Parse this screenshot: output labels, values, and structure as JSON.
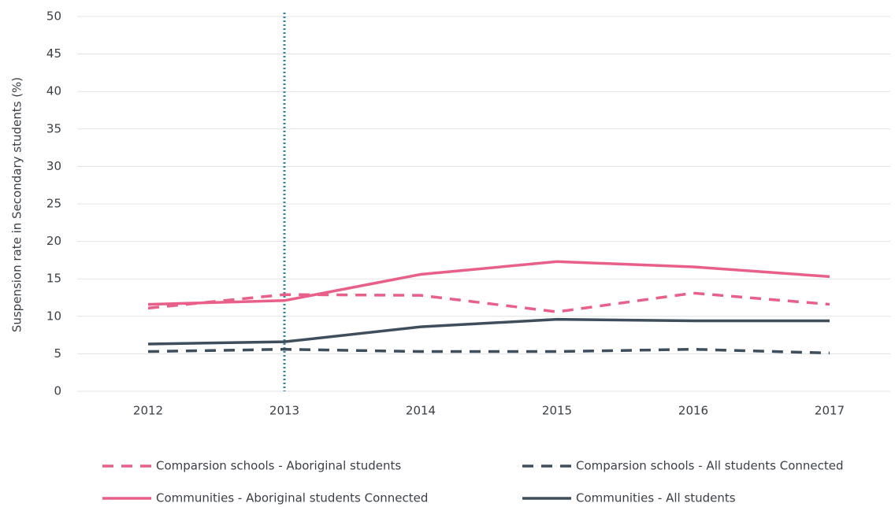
{
  "chart_data": {
    "type": "line",
    "y_label": "Suspension rate in Secondary students (%)",
    "x": [
      "2012",
      "2013",
      "2014",
      "2015",
      "2016",
      "2017"
    ],
    "series": [
      {
        "name": "Comparsion schools - Aboriginal students",
        "color": "#e8608a",
        "dash": true,
        "values": [
          11.1,
          12.9,
          12.8,
          10.6,
          13.1,
          11.6
        ]
      },
      {
        "name": "Comparsion schools - All students Connected",
        "color": "#3f4e5c",
        "dash": true,
        "values": [
          5.3,
          5.6,
          5.3,
          5.3,
          5.6,
          5.1
        ]
      },
      {
        "name": "Communities - Aboriginal students Connected",
        "color": "#e8608a",
        "dash": false,
        "values": [
          11.6,
          12.1,
          15.6,
          17.3,
          16.6,
          15.3
        ]
      },
      {
        "name": "Communities - All students",
        "color": "#3f4e5c",
        "dash": false,
        "values": [
          6.3,
          6.6,
          8.6,
          9.6,
          9.4,
          9.4
        ]
      }
    ],
    "vertical_line": {
      "at": "2013",
      "color": "#3a7f94",
      "style": "dotted"
    },
    "ylim": [
      0,
      50
    ],
    "yticks": [
      0,
      5,
      10,
      15,
      20,
      25,
      30,
      35,
      40,
      45,
      50
    ],
    "grid": true
  }
}
